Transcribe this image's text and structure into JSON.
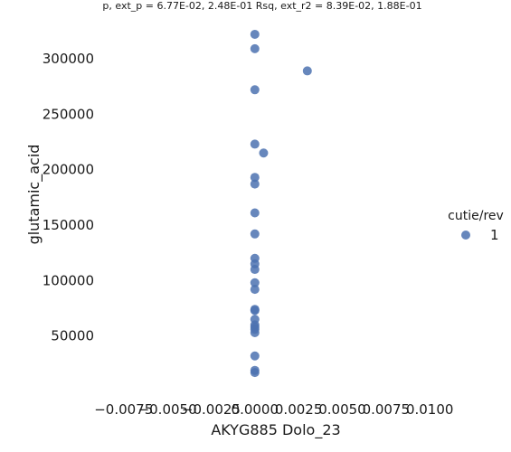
{
  "chart_data": {
    "type": "scatter",
    "title": "p, ext_p = 6.77E-02, 2.48E-01 Rsq, ext_r2 = 8.39E-02, 1.88E-01",
    "xlabel": "AKYG885 Dolo_23",
    "ylabel": "glutamic_acid",
    "xlim": [
      -0.0094,
      0.0118
    ],
    "ylim": [
      0,
      335000
    ],
    "xticks": [
      -0.0075,
      -0.005,
      -0.0025,
      0.0,
      0.0025,
      0.005,
      0.0075,
      0.01
    ],
    "xtick_labels": [
      "−0.0075",
      "−0.0050",
      "−0.0025",
      "0.0000",
      "0.0025",
      "0.0050",
      "0.0075",
      "0.0100"
    ],
    "yticks": [
      50000,
      100000,
      150000,
      200000,
      250000,
      300000
    ],
    "ytick_labels": [
      "50000",
      "100000",
      "150000",
      "200000",
      "250000",
      "300000"
    ],
    "grid": false,
    "legend": {
      "title": "cutie/rev",
      "placement": "right",
      "entries": [
        "1"
      ]
    },
    "series": [
      {
        "name": "1",
        "color": "#4c72b0",
        "points": [
          [
            0.0,
            322000
          ],
          [
            0.0,
            309000
          ],
          [
            0.003,
            289000
          ],
          [
            0.0,
            272000
          ],
          [
            0.0,
            223000
          ],
          [
            0.0005,
            215000
          ],
          [
            0.0,
            193000
          ],
          [
            0.0,
            187000
          ],
          [
            0.0,
            161000
          ],
          [
            0.0,
            142000
          ],
          [
            0.0,
            120000
          ],
          [
            0.0,
            115000
          ],
          [
            0.0,
            110000
          ],
          [
            0.0,
            98000
          ],
          [
            0.0,
            92000
          ],
          [
            0.0,
            74000
          ],
          [
            0.0,
            73000
          ],
          [
            0.0,
            65000
          ],
          [
            0.0,
            60000
          ],
          [
            0.0,
            58000
          ],
          [
            0.0,
            56000
          ],
          [
            0.0,
            53000
          ],
          [
            0.0,
            32000
          ],
          [
            0.0,
            19000
          ],
          [
            0.0,
            17000
          ]
        ]
      }
    ]
  }
}
